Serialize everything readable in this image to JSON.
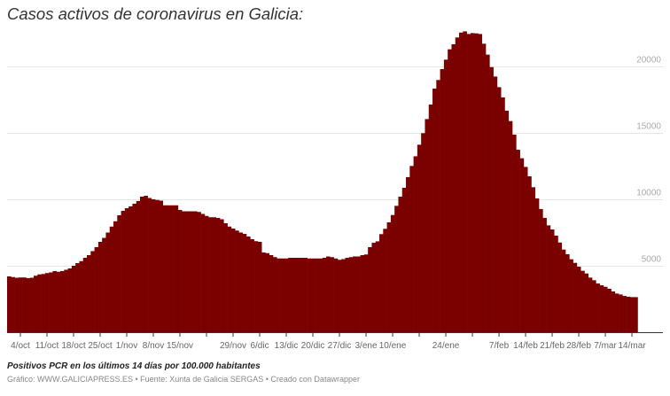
{
  "title": "Casos activos de coronavirus en Galicia:",
  "notes": "Positivos PCR en los últimos 14 días por 100.000 habitantes",
  "source": "Gráfico: WWW.GALICIAPRESS.ES • Fuente: Xunta de Galicia SERGAS • Creado con Datawrapper",
  "chart_data": {
    "type": "bar",
    "title": "Casos activos de coronavirus en Galicia:",
    "xlabel": "",
    "ylabel": "",
    "start_date": "1/oct",
    "end_date": "15/mar",
    "ylim": [
      0,
      23000
    ],
    "y_ticks": [
      5000,
      10000,
      15000,
      20000
    ],
    "y_tick_labels": [
      "5000",
      "10000",
      "15000",
      "20000"
    ],
    "grid": true,
    "color": "#7b0000",
    "x_ticks": [
      {
        "day": 3,
        "label": "4/oct"
      },
      {
        "day": 10,
        "label": "11/oct"
      },
      {
        "day": 17,
        "label": "18/oct"
      },
      {
        "day": 24,
        "label": "25/oct"
      },
      {
        "day": 31,
        "label": "1/nov"
      },
      {
        "day": 38,
        "label": "8/nov"
      },
      {
        "day": 45,
        "label": "15/nov"
      },
      {
        "day": 52,
        "label": ""
      },
      {
        "day": 59,
        "label": "29/nov"
      },
      {
        "day": 66,
        "label": "6/dic"
      },
      {
        "day": 73,
        "label": "13/dic"
      },
      {
        "day": 80,
        "label": "20/dic"
      },
      {
        "day": 87,
        "label": "27/dic"
      },
      {
        "day": 94,
        "label": "3/ene"
      },
      {
        "day": 101,
        "label": "10/ene"
      },
      {
        "day": 108,
        "label": ""
      },
      {
        "day": 115,
        "label": "24/ene"
      },
      {
        "day": 122,
        "label": ""
      },
      {
        "day": 129,
        "label": "7/feb"
      },
      {
        "day": 136,
        "label": "14/feb"
      },
      {
        "day": 143,
        "label": "21/feb"
      },
      {
        "day": 150,
        "label": "28/feb"
      },
      {
        "day": 157,
        "label": "7/mar"
      },
      {
        "day": 164,
        "label": "14/mar"
      }
    ],
    "values": [
      4200,
      4150,
      4100,
      4120,
      4120,
      4070,
      4100,
      4250,
      4350,
      4380,
      4450,
      4500,
      4600,
      4550,
      4600,
      4700,
      4800,
      5000,
      5200,
      5350,
      5600,
      5800,
      6100,
      6400,
      6800,
      7100,
      7500,
      7950,
      8350,
      8800,
      9130,
      9330,
      9470,
      9670,
      9870,
      10200,
      10270,
      10100,
      10000,
      9950,
      9900,
      9550,
      9550,
      9550,
      9550,
      9200,
      9100,
      9100,
      9100,
      9100,
      9050,
      8900,
      8750,
      8650,
      8650,
      8600,
      8500,
      8200,
      7950,
      7800,
      7650,
      7500,
      7400,
      7200,
      7000,
      6850,
      6800,
      6000,
      5950,
      5800,
      5650,
      5550,
      5550,
      5550,
      5600,
      5600,
      5600,
      5600,
      5600,
      5550,
      5550,
      5550,
      5550,
      5600,
      5700,
      5650,
      5550,
      5450,
      5500,
      5600,
      5650,
      5700,
      5700,
      5800,
      5850,
      6400,
      6730,
      6840,
      7380,
      7780,
      8270,
      8820,
      9510,
      10200,
      10870,
      11670,
      12510,
      13240,
      14110,
      14980,
      16040,
      17130,
      18330,
      18980,
      19800,
      20510,
      21290,
      21670,
      22180,
      22550,
      22640,
      22440,
      22510,
      22490,
      22440,
      21710,
      20890,
      19950,
      19240,
      18440,
      17670,
      16670,
      15890,
      14870,
      13730,
      13090,
      12440,
      11730,
      10910,
      10070,
      9270,
      8600,
      8040,
      7730,
      7270,
      6750,
      6220,
      5870,
      5490,
      5220,
      4930,
      4620,
      4420,
      4110,
      3910,
      3670,
      3530,
      3420,
      3270,
      3070,
      2910,
      2840,
      2730,
      2670,
      2640,
      2640
    ]
  }
}
